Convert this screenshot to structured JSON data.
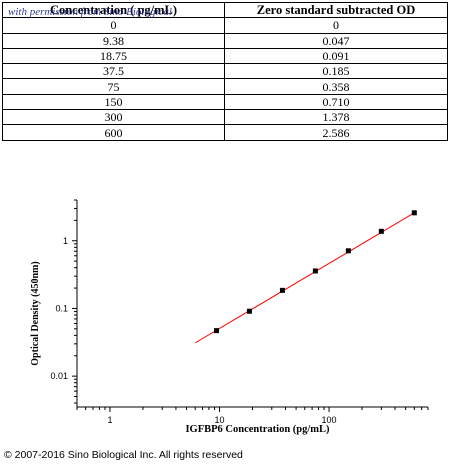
{
  "watermark": "with permission from Sino Biological",
  "table": {
    "headers": [
      "Concentration ( pg/mL)",
      "Zero standard subtracted OD"
    ],
    "rows": [
      [
        "0",
        "0"
      ],
      [
        "9.38",
        "0.047"
      ],
      [
        "18.75",
        "0.091"
      ],
      [
        "37.5",
        "0.185"
      ],
      [
        "75",
        "0.358"
      ],
      [
        "150",
        "0.710"
      ],
      [
        "300",
        "1.378"
      ],
      [
        "600",
        "2.586"
      ]
    ]
  },
  "chart_data": {
    "type": "scatter",
    "xlabel": "IGFBP6 Concentration (pg/mL)",
    "ylabel": "Optical Density (450nm)",
    "x_scale": "log",
    "y_scale": "log",
    "xlim": [
      0.5,
      800
    ],
    "ylim": [
      0.0035,
      4
    ],
    "x_ticks": [
      1,
      10,
      100
    ],
    "x_tick_labels": [
      "1",
      "10",
      "100"
    ],
    "y_ticks": [
      0.01,
      0.1,
      1
    ],
    "y_tick_labels": [
      "0.01",
      "0.1",
      "1"
    ],
    "grid": false,
    "series": [
      {
        "x": [
          9.38,
          18.75,
          37.5,
          75,
          150,
          300,
          600
        ],
        "y": [
          0.047,
          0.091,
          0.185,
          0.358,
          0.71,
          1.378,
          2.586
        ],
        "color": "#000000"
      }
    ],
    "fit_line": {
      "x": [
        6,
        600
      ],
      "y": [
        0.031,
        2.586
      ],
      "color": "#ff0000"
    }
  },
  "footer": "© 2007-2016 Sino Biological Inc. All rights reserved"
}
